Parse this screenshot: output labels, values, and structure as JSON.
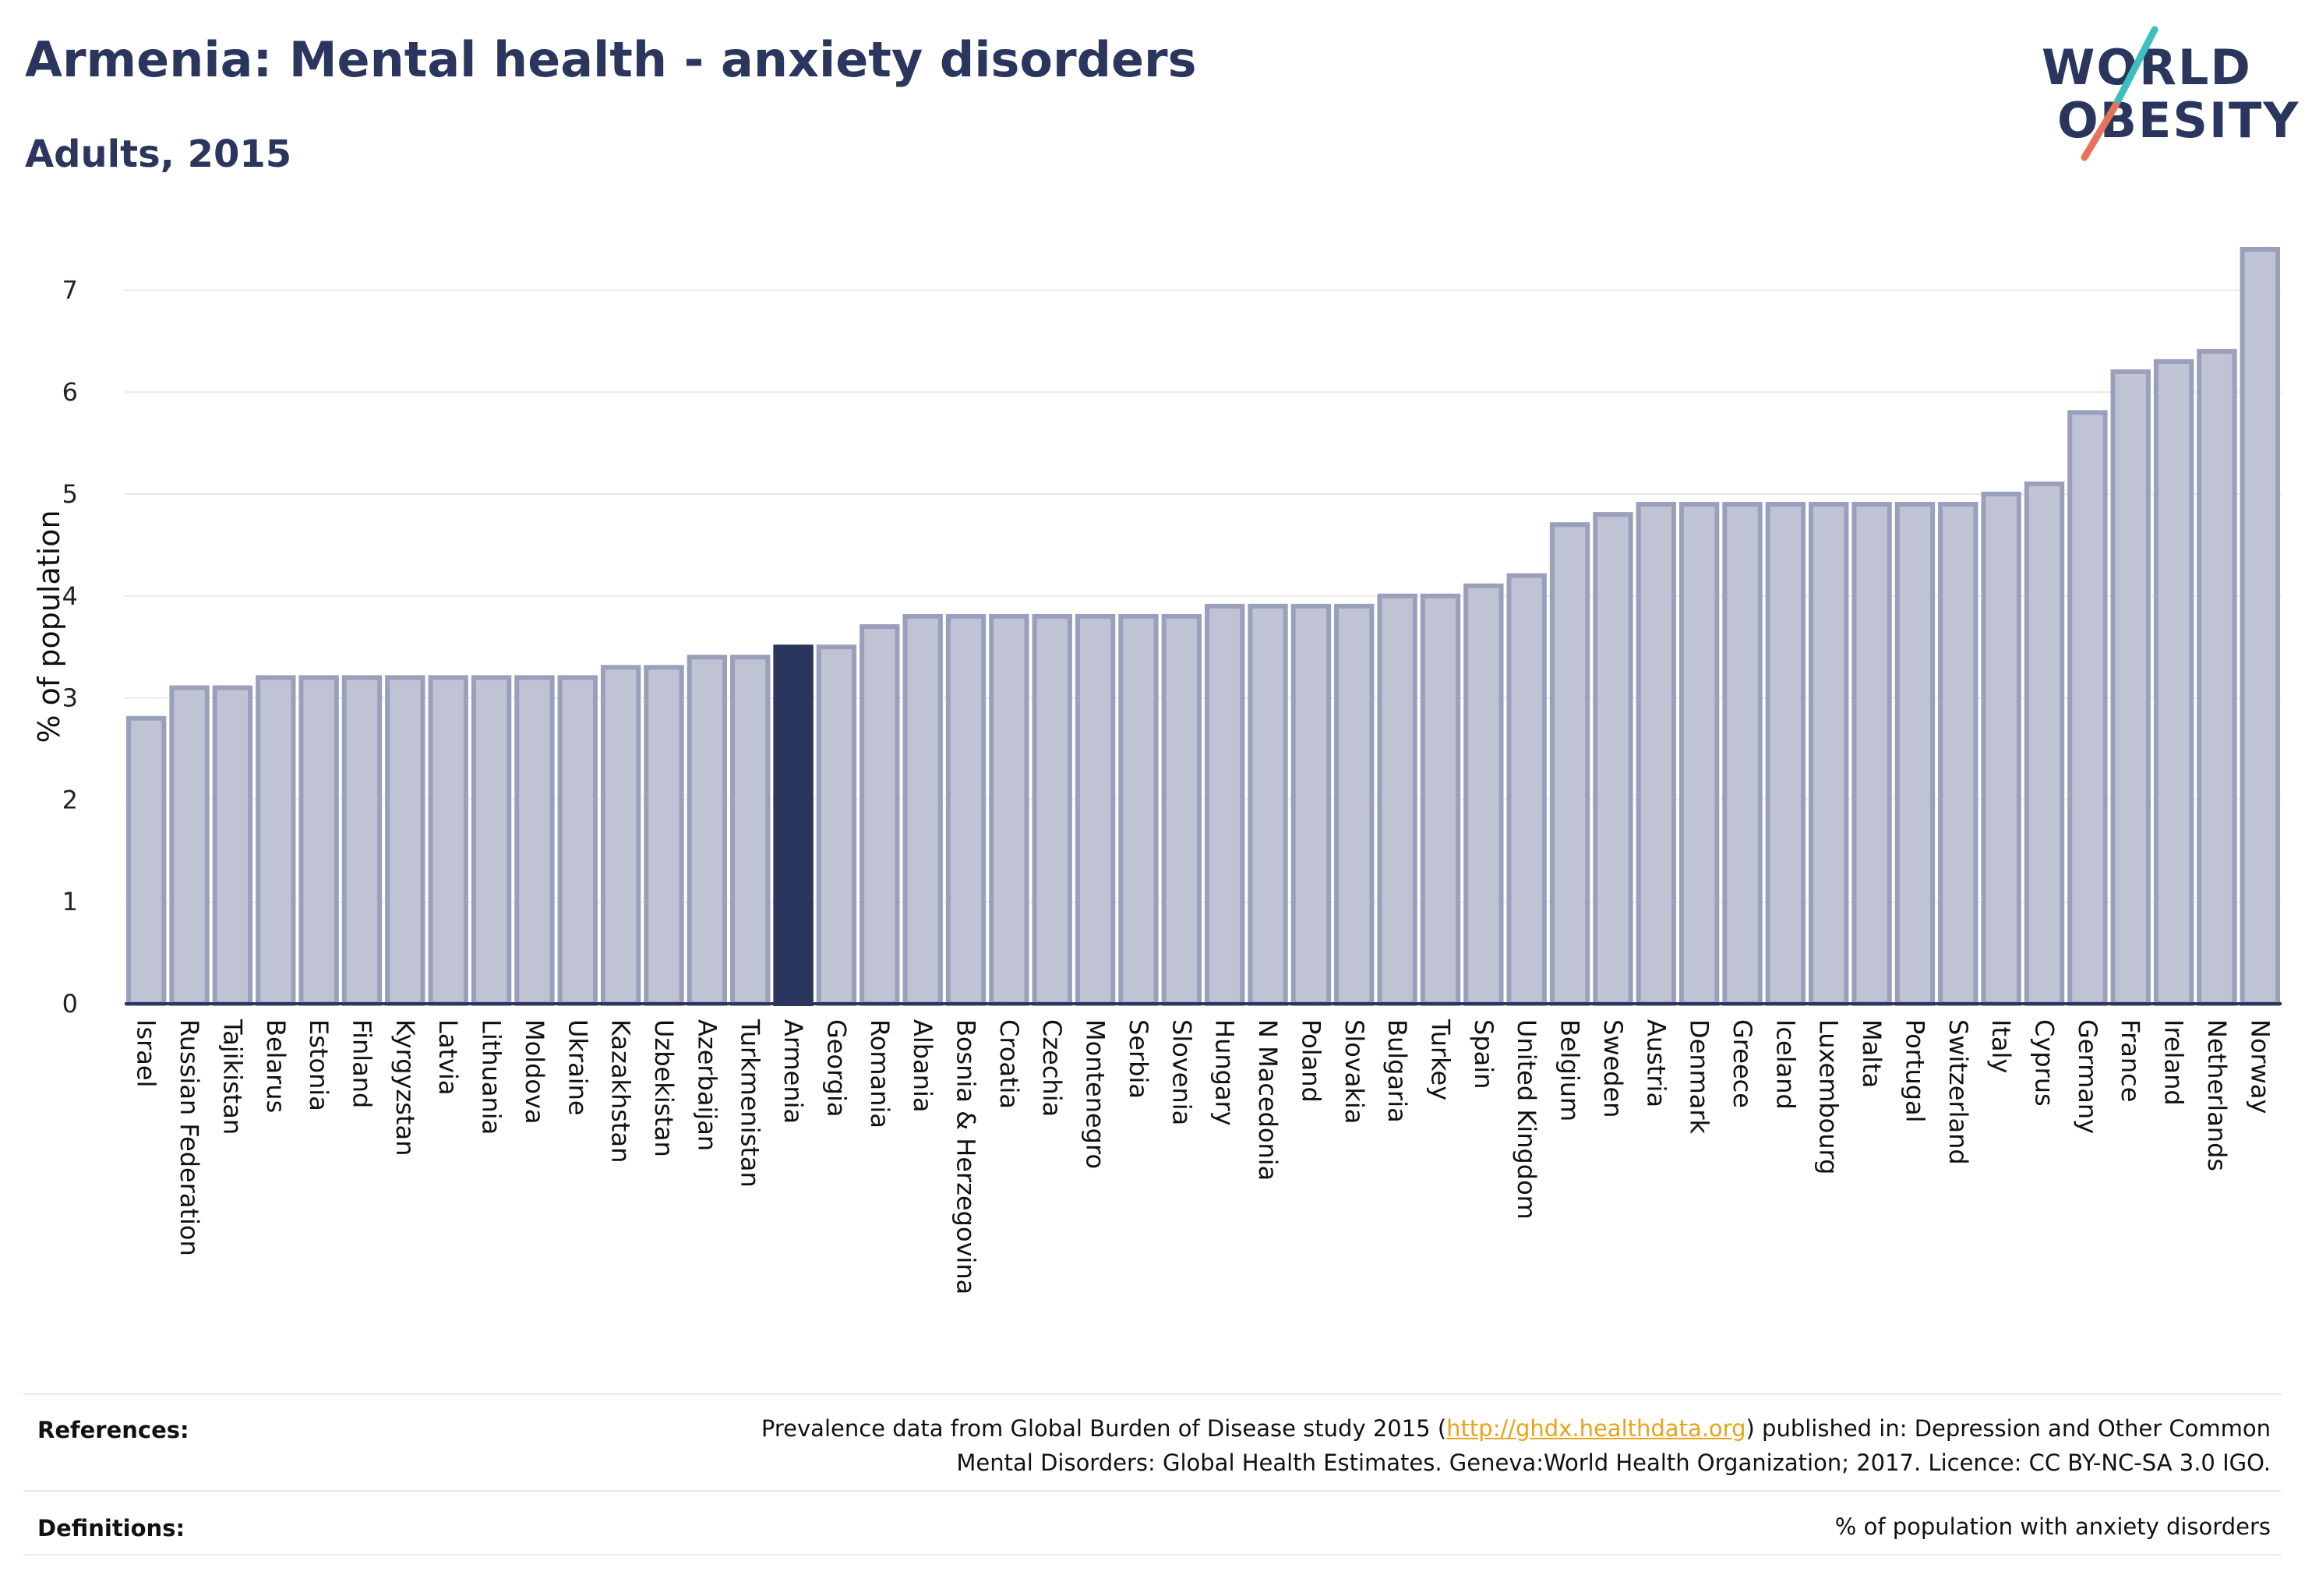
{
  "title": "Armenia: Mental health - anxiety disorders",
  "subtitle": "Adults, 2015",
  "logo": {
    "line1": "WORLD",
    "line2": "OBESITY",
    "accent_colors": [
      "#3bbfbf",
      "#e8725a"
    ]
  },
  "colors": {
    "highlight": "#2b365f",
    "bar": "#bfc3d3",
    "bar_stroke": "#9aa0bb",
    "grid": "#e8e9ef",
    "link": "#e8a317"
  },
  "chart_data": {
    "type": "bar",
    "ylabel": "% of population",
    "ylim": [
      0,
      7.4
    ],
    "yticks": [
      0,
      1,
      2,
      3,
      4,
      5,
      6,
      7
    ],
    "highlight": "Armenia",
    "categories": [
      "Israel",
      "Russian Federation",
      "Tajikistan",
      "Belarus",
      "Estonia",
      "Finland",
      "Kyrgyzstan",
      "Latvia",
      "Lithuania",
      "Moldova",
      "Ukraine",
      "Kazakhstan",
      "Uzbekistan",
      "Azerbaijan",
      "Turkmenistan",
      "Armenia",
      "Georgia",
      "Romania",
      "Albania",
      "Bosnia & Herzegovina",
      "Croatia",
      "Czechia",
      "Montenegro",
      "Serbia",
      "Slovenia",
      "Hungary",
      "N Macedonia",
      "Poland",
      "Slovakia",
      "Bulgaria",
      "Turkey",
      "Spain",
      "United Kingdom",
      "Belgium",
      "Sweden",
      "Austria",
      "Denmark",
      "Greece",
      "Iceland",
      "Luxembourg",
      "Malta",
      "Portugal",
      "Switzerland",
      "Italy",
      "Cyprus",
      "Germany",
      "France",
      "Ireland",
      "Netherlands",
      "Norway"
    ],
    "values": [
      2.8,
      3.1,
      3.1,
      3.2,
      3.2,
      3.2,
      3.2,
      3.2,
      3.2,
      3.2,
      3.2,
      3.3,
      3.3,
      3.4,
      3.4,
      3.5,
      3.5,
      3.7,
      3.8,
      3.8,
      3.8,
      3.8,
      3.8,
      3.8,
      3.8,
      3.9,
      3.9,
      3.9,
      3.9,
      4.0,
      4.0,
      4.1,
      4.2,
      4.7,
      4.8,
      4.9,
      4.9,
      4.9,
      4.9,
      4.9,
      4.9,
      4.9,
      4.9,
      5.0,
      5.1,
      5.8,
      6.2,
      6.3,
      6.4,
      7.4
    ]
  },
  "footer": {
    "references_label": "References:",
    "references_pre": "Prevalence data from Global Burden of Disease study 2015 (",
    "references_link": "http://ghdx.healthdata.org",
    "references_post": ") published in: Depression and Other Common",
    "references_line2": "Mental Disorders: Global Health Estimates. Geneva:World Health Organization; 2017. Licence: CC BY-NC-SA 3.0 IGO.",
    "definitions_label": "Definitions:",
    "definitions_text": "% of population with anxiety disorders"
  }
}
